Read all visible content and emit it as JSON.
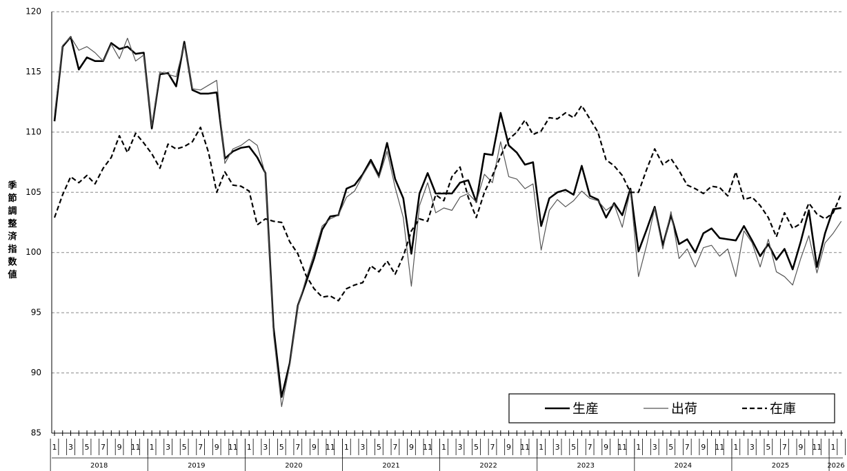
{
  "chart_data": {
    "type": "line",
    "y_label": "季節調整済指数値",
    "categories": [
      "1",
      null,
      "3",
      null,
      "5",
      null,
      "7",
      null,
      "9",
      null,
      "11",
      null,
      "1",
      null,
      "3",
      null,
      "5",
      null,
      "7",
      null,
      "9",
      null,
      "11",
      null,
      "1",
      null,
      "3",
      null,
      "5",
      null,
      "7",
      null,
      "9",
      null,
      "11",
      null,
      "1",
      null,
      "3",
      null,
      "5",
      null,
      "7",
      null,
      "9",
      null,
      "11",
      null,
      "1",
      null,
      "3",
      null,
      "5",
      null,
      "7",
      null,
      "9",
      null,
      "11",
      null,
      "1",
      null,
      "3",
      null,
      "5",
      null,
      "7",
      null,
      "9",
      null,
      "11",
      null,
      "1",
      null,
      "3",
      null,
      "5",
      null,
      "7",
      null,
      "9",
      null,
      "11",
      null,
      "1",
      null,
      "3",
      null,
      "5",
      null,
      "7",
      null,
      "9",
      null,
      "11",
      null,
      "1",
      null
    ],
    "years": [
      "2018",
      "2019",
      "2020",
      "2021",
      "2022",
      "2023",
      "2024",
      "2025",
      "2026"
    ],
    "series": [
      {
        "name": "生産",
        "color": "#000000",
        "linestyle": "solid",
        "values": [
          110.9,
          117.1,
          117.9,
          115.2,
          116.2,
          115.9,
          115.9,
          117.4,
          116.9,
          117.1,
          116.5,
          116.6,
          110.3,
          114.8,
          114.9,
          113.8,
          117.5,
          113.5,
          113.2,
          113.2,
          113.3,
          107.8,
          108.4,
          108.7,
          108.8,
          107.9,
          106.6,
          93.8,
          88.0,
          90.8,
          95.6,
          97.5,
          99.5,
          101.9,
          103.0,
          103.1,
          105.3,
          105.6,
          106.5,
          107.7,
          106.4,
          109.1,
          106.1,
          104.5,
          99.9,
          104.9,
          106.6,
          104.9,
          104.9,
          104.9,
          105.8,
          106.0,
          104.2,
          108.2,
          108.1,
          111.6,
          108.9,
          108.3,
          107.3,
          107.5,
          102.2,
          104.5,
          105.0,
          105.2,
          104.8,
          107.2,
          104.7,
          104.4,
          102.9,
          104.1,
          103.1,
          105.3,
          100.1,
          101.9,
          103.8,
          100.6,
          103.1,
          100.7,
          101.1,
          100.0,
          101.6,
          102.0,
          101.2,
          101.1,
          101.0,
          102.2,
          101.0,
          99.7,
          100.7,
          99.4,
          100.3,
          98.6,
          100.9,
          103.5,
          98.8,
          101.6,
          103.6,
          103.7
        ]
      },
      {
        "name": "出荷",
        "color": "#555555",
        "linestyle": "solid",
        "values": [
          111.5,
          117.2,
          117.9,
          116.8,
          117.1,
          116.6,
          115.9,
          117.3,
          116.1,
          117.8,
          115.9,
          116.4,
          110.5,
          115.0,
          114.8,
          114.6,
          117.3,
          113.6,
          113.5,
          113.9,
          114.3,
          107.4,
          108.6,
          108.9,
          109.4,
          108.9,
          106.5,
          93.2,
          87.2,
          90.6,
          95.5,
          97.8,
          99.9,
          102.2,
          102.8,
          103.1,
          104.6,
          105.1,
          106.4,
          107.5,
          106.2,
          108.4,
          105.4,
          102.9,
          97.2,
          103.9,
          105.8,
          103.3,
          103.7,
          103.5,
          104.6,
          104.9,
          104.2,
          106.5,
          105.8,
          109.2,
          106.3,
          106.1,
          105.3,
          105.7,
          100.2,
          103.5,
          104.4,
          103.8,
          104.3,
          105.1,
          104.5,
          104.3,
          103.5,
          104.0,
          102.1,
          105.2,
          98.0,
          100.6,
          103.7,
          100.3,
          103.4,
          99.5,
          100.3,
          98.8,
          100.4,
          100.6,
          99.7,
          100.3,
          98.0,
          101.8,
          100.8,
          98.8,
          101.1,
          98.4,
          98.0,
          97.3,
          99.5,
          101.4,
          98.3,
          100.8,
          101.6,
          102.6
        ]
      },
      {
        "name": "在庫",
        "color": "#000000",
        "linestyle": "dashed",
        "values": [
          102.9,
          104.8,
          106.3,
          105.8,
          106.4,
          105.7,
          107.0,
          107.9,
          109.7,
          108.3,
          109.9,
          109.1,
          108.2,
          107.0,
          109.0,
          108.6,
          108.8,
          109.2,
          110.4,
          108.3,
          105.0,
          106.7,
          105.6,
          105.5,
          105.1,
          102.3,
          102.8,
          102.6,
          102.5,
          100.9,
          99.9,
          98.1,
          97.0,
          96.3,
          96.4,
          96.0,
          97.0,
          97.3,
          97.5,
          98.9,
          98.4,
          99.3,
          98.2,
          99.7,
          101.8,
          102.8,
          102.6,
          104.8,
          104.3,
          106.3,
          107.1,
          104.6,
          102.9,
          105.0,
          106.4,
          108.0,
          109.4,
          110.0,
          111.0,
          109.8,
          110.1,
          111.2,
          111.1,
          111.6,
          111.2,
          112.2,
          111.1,
          110.0,
          107.7,
          107.2,
          106.4,
          105.0,
          105.0,
          106.9,
          108.6,
          107.3,
          107.8,
          106.8,
          105.6,
          105.3,
          104.9,
          105.5,
          105.4,
          104.7,
          106.7,
          104.4,
          104.6,
          103.9,
          102.9,
          101.3,
          103.3,
          102.0,
          102.4,
          104.1,
          103.2,
          102.8,
          103.3,
          104.9
        ]
      }
    ],
    "ylim": [
      85,
      120
    ],
    "yticks": [
      85,
      90,
      95,
      100,
      105,
      110,
      115,
      120
    ],
    "grid": true,
    "legend": "lower right"
  }
}
